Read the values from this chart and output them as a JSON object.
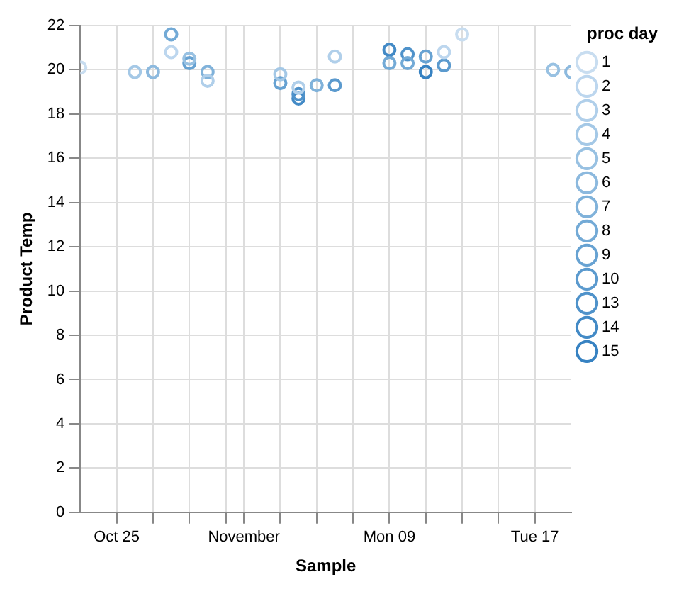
{
  "chart_data": {
    "type": "scatter",
    "xlabel": "Sample",
    "ylabel": "Product Temp",
    "legend_title": "proc day",
    "legend": "right",
    "grid": true,
    "marker": "circle",
    "xlim": [
      "--10-23",
      "--11-19"
    ],
    "xticks": [
      {
        "value": "--10-25",
        "label": "Oct 25"
      },
      {
        "value": "--10-27",
        "label": null
      },
      {
        "value": "--10-29",
        "label": null
      },
      {
        "value": "--10-31",
        "label": null
      },
      {
        "value": "--11-01",
        "label": "November"
      },
      {
        "value": "--11-03",
        "label": null
      },
      {
        "value": "--11-05",
        "label": null
      },
      {
        "value": "--11-07",
        "label": null
      },
      {
        "value": "--11-09",
        "label": "Mon 09"
      },
      {
        "value": "--11-11",
        "label": null
      },
      {
        "value": "--11-13",
        "label": null
      },
      {
        "value": "--11-15",
        "label": null
      },
      {
        "value": "--11-17",
        "label": "Tue 17"
      }
    ],
    "ylim": [
      0,
      22
    ],
    "yticks": [
      0,
      2,
      4,
      6,
      8,
      10,
      12,
      14,
      16,
      18,
      20,
      22
    ],
    "series": [
      {
        "name": "1",
        "color": "#c8ddf0",
        "x": [
          "--10-23",
          "--11-13"
        ],
        "values": [
          20.1,
          21.6
        ]
      },
      {
        "name": "2",
        "color": "#bcd6ee",
        "x": [
          "--10-28",
          "--11-12"
        ],
        "values": [
          20.8,
          20.8
        ]
      },
      {
        "name": "3",
        "color": "#b0cfea",
        "x": [
          "--10-30",
          "--11-04",
          "--11-06"
        ],
        "values": [
          19.5,
          19.2,
          20.6
        ]
      },
      {
        "name": "4",
        "color": "#a4c8e6",
        "x": [
          "--10-26",
          "--11-03"
        ],
        "values": [
          19.9,
          19.8
        ]
      },
      {
        "name": "5",
        "color": "#98c1e2",
        "x": [
          "--10-29",
          "--11-18"
        ],
        "values": [
          20.5,
          20.0
        ]
      },
      {
        "name": "6",
        "color": "#8cb9de",
        "x": [
          "--10-27",
          "--11-19"
        ],
        "values": [
          19.9,
          19.9
        ]
      },
      {
        "name": "7",
        "color": "#80b2da",
        "x": [
          "--10-30",
          "--11-05"
        ],
        "values": [
          19.9,
          19.3
        ]
      },
      {
        "name": "8",
        "color": "#73aad6",
        "x": [
          "--10-28",
          "--11-09",
          "--11-10"
        ],
        "values": [
          21.6,
          20.3,
          20.3
        ]
      },
      {
        "name": "9",
        "color": "#67a2d2",
        "x": [
          "--10-29",
          "--11-03",
          "--11-11"
        ],
        "values": [
          20.3,
          19.4,
          20.6
        ]
      },
      {
        "name": "10",
        "color": "#5b9ace",
        "x": [
          "--11-12",
          "--11-06"
        ],
        "values": [
          20.2,
          19.3
        ]
      },
      {
        "name": "13",
        "color": "#4f92ca",
        "x": [
          "--11-04",
          "--11-10"
        ],
        "values": [
          18.9,
          20.7
        ]
      },
      {
        "name": "14",
        "color": "#438ac6",
        "x": [
          "--11-04",
          "--11-09"
        ],
        "values": [
          18.7,
          20.9
        ]
      },
      {
        "name": "15",
        "color": "#3782c2",
        "x": [
          "--11-11"
        ],
        "values": [
          19.9
        ]
      }
    ]
  }
}
